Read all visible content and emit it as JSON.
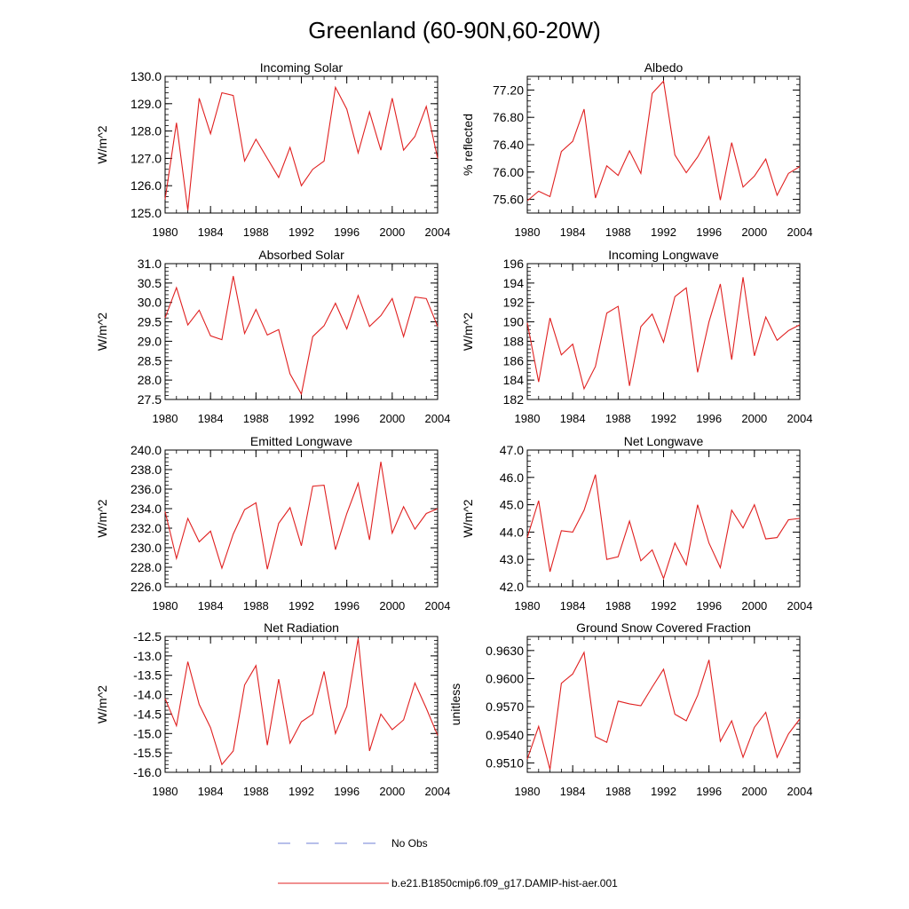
{
  "title": "Greenland (60-90N,60-20W)",
  "legend": {
    "items": [
      {
        "label": "No Obs",
        "color": "#6f7fd6",
        "dash": true
      },
      {
        "label": "b.e21.B1850cmip6.f09_g17.DAMIP-hist-aer.001",
        "color": "#e02020",
        "dash": false
      }
    ]
  },
  "chart_data": [
    {
      "type": "line",
      "title": "Incoming Solar",
      "ylabel": "W/m^2",
      "xlim": [
        1980,
        2004
      ],
      "ylim": [
        125.0,
        130.0
      ],
      "x_ticks": [
        "1980",
        "1984",
        "1988",
        "1992",
        "1996",
        "2000",
        "2004"
      ],
      "y_ticks": [
        "125.0",
        "126.0",
        "127.0",
        "128.0",
        "129.0",
        "130.0"
      ],
      "series": [
        {
          "color": "#e02020",
          "x": [
            1980,
            1981,
            1982,
            1983,
            1984,
            1985,
            1986,
            1987,
            1988,
            1989,
            1990,
            1991,
            1992,
            1993,
            1994,
            1995,
            1996,
            1997,
            1998,
            1999,
            2000,
            2001,
            2002,
            2003,
            2004
          ],
          "values": [
            125.5,
            128.3,
            125.1,
            129.2,
            127.9,
            129.4,
            129.3,
            126.9,
            127.7,
            127.0,
            126.3,
            127.4,
            126.0,
            126.6,
            126.9,
            129.6,
            128.8,
            127.2,
            128.7,
            127.3,
            129.2,
            127.3,
            127.8,
            128.9,
            127.0
          ]
        }
      ]
    },
    {
      "type": "line",
      "title": "Albedo",
      "ylabel": "% reflected",
      "xlim": [
        1980,
        2004
      ],
      "ylim": [
        75.4,
        77.4
      ],
      "x_ticks": [
        "1980",
        "1984",
        "1988",
        "1992",
        "1996",
        "2000",
        "2004"
      ],
      "y_ticks": [
        "75.60",
        "76.00",
        "76.40",
        "76.80",
        "77.20"
      ],
      "series": [
        {
          "color": "#e02020",
          "x": [
            1980,
            1981,
            1982,
            1983,
            1984,
            1985,
            1986,
            1987,
            1988,
            1989,
            1990,
            1991,
            1992,
            1993,
            1994,
            1995,
            1996,
            1997,
            1998,
            1999,
            2000,
            2001,
            2002,
            2003,
            2004
          ],
          "values": [
            75.58,
            75.72,
            75.64,
            76.3,
            76.45,
            76.92,
            75.62,
            76.09,
            75.95,
            76.31,
            75.98,
            77.15,
            77.33,
            76.25,
            75.99,
            76.22,
            76.52,
            75.59,
            76.43,
            75.78,
            75.94,
            76.19,
            75.66,
            75.98,
            76.08
          ]
        }
      ]
    },
    {
      "type": "line",
      "title": "Absorbed Solar",
      "ylabel": "W/m^2",
      "xlim": [
        1980,
        2004
      ],
      "ylim": [
        27.5,
        31.0
      ],
      "x_ticks": [
        "1980",
        "1984",
        "1988",
        "1992",
        "1996",
        "2000",
        "2004"
      ],
      "y_ticks": [
        "27.5",
        "28.0",
        "28.5",
        "29.0",
        "29.5",
        "30.0",
        "30.5",
        "31.0"
      ],
      "series": [
        {
          "color": "#e02020",
          "x": [
            1980,
            1981,
            1982,
            1983,
            1984,
            1985,
            1986,
            1987,
            1988,
            1989,
            1990,
            1991,
            1992,
            1993,
            1994,
            1995,
            1996,
            1997,
            1998,
            1999,
            2000,
            2001,
            2002,
            2003,
            2004
          ],
          "values": [
            29.6,
            30.38,
            29.42,
            29.8,
            29.14,
            29.04,
            30.68,
            29.2,
            29.82,
            29.16,
            29.3,
            28.16,
            27.64,
            29.12,
            29.4,
            29.98,
            29.32,
            30.18,
            29.38,
            29.66,
            30.1,
            29.12,
            30.14,
            30.1,
            29.38
          ]
        }
      ]
    },
    {
      "type": "line",
      "title": "Incoming Longwave",
      "ylabel": "W/m^2",
      "xlim": [
        1980,
        2004
      ],
      "ylim": [
        182,
        196
      ],
      "x_ticks": [
        "1980",
        "1984",
        "1988",
        "1992",
        "1996",
        "2000",
        "2004"
      ],
      "y_ticks": [
        "182",
        "184",
        "186",
        "188",
        "190",
        "192",
        "194",
        "196"
      ],
      "series": [
        {
          "color": "#e02020",
          "x": [
            1980,
            1981,
            1982,
            1983,
            1984,
            1985,
            1986,
            1987,
            1988,
            1989,
            1990,
            1991,
            1992,
            1993,
            1994,
            1995,
            1996,
            1997,
            1998,
            1999,
            2000,
            2001,
            2002,
            2003,
            2004
          ],
          "values": [
            189.9,
            183.8,
            190.4,
            186.6,
            187.7,
            183.1,
            185.4,
            190.9,
            191.6,
            183.4,
            189.5,
            190.8,
            187.9,
            192.6,
            193.5,
            184.8,
            190.0,
            193.9,
            186.1,
            194.6,
            186.5,
            190.5,
            188.1,
            189.1,
            189.7
          ]
        }
      ]
    },
    {
      "type": "line",
      "title": "Emitted Longwave",
      "ylabel": "W/m^2",
      "xlim": [
        1980,
        2004
      ],
      "ylim": [
        226.0,
        240.0
      ],
      "x_ticks": [
        "1980",
        "1984",
        "1988",
        "1992",
        "1996",
        "2000",
        "2004"
      ],
      "y_ticks": [
        "226.0",
        "228.0",
        "230.0",
        "232.0",
        "234.0",
        "236.0",
        "238.0",
        "240.0"
      ],
      "series": [
        {
          "color": "#e02020",
          "x": [
            1980,
            1981,
            1982,
            1983,
            1984,
            1985,
            1986,
            1987,
            1988,
            1989,
            1990,
            1991,
            1992,
            1993,
            1994,
            1995,
            1996,
            1997,
            1998,
            1999,
            2000,
            2001,
            2002,
            2003,
            2004
          ],
          "values": [
            233.7,
            228.9,
            233.0,
            230.6,
            231.7,
            227.9,
            231.4,
            233.9,
            234.6,
            227.8,
            232.5,
            234.1,
            230.2,
            236.3,
            236.4,
            229.8,
            233.5,
            236.6,
            230.8,
            238.8,
            231.5,
            234.2,
            231.9,
            233.5,
            234.0
          ]
        }
      ]
    },
    {
      "type": "line",
      "title": "Net Longwave",
      "ylabel": "W/m^2",
      "xlim": [
        1980,
        2004
      ],
      "ylim": [
        42.0,
        47.0
      ],
      "x_ticks": [
        "1980",
        "1984",
        "1988",
        "1992",
        "1996",
        "2000",
        "2004"
      ],
      "y_ticks": [
        "42.0",
        "43.0",
        "44.0",
        "45.0",
        "46.0",
        "47.0"
      ],
      "series": [
        {
          "color": "#e02020",
          "x": [
            1980,
            1981,
            1982,
            1983,
            1984,
            1985,
            1986,
            1987,
            1988,
            1989,
            1990,
            1991,
            1992,
            1993,
            1994,
            1995,
            1996,
            1997,
            1998,
            1999,
            2000,
            2001,
            2002,
            2003,
            2004
          ],
          "values": [
            43.8,
            45.15,
            42.55,
            44.05,
            44.0,
            44.8,
            46.1,
            43.0,
            43.1,
            44.4,
            42.95,
            43.35,
            42.3,
            43.6,
            42.8,
            45.0,
            43.6,
            42.7,
            44.8,
            44.15,
            45.0,
            43.75,
            43.8,
            44.45,
            44.5
          ]
        }
      ]
    },
    {
      "type": "line",
      "title": "Net Radiation",
      "ylabel": "W/m^2",
      "xlim": [
        1980,
        2004
      ],
      "ylim": [
        -16.0,
        -12.5
      ],
      "x_ticks": [
        "1980",
        "1984",
        "1988",
        "1992",
        "1996",
        "2000",
        "2004"
      ],
      "y_ticks": [
        "-16.0",
        "-15.5",
        "-15.0",
        "-14.5",
        "-14.0",
        "-13.5",
        "-13.0",
        "-12.5"
      ],
      "series": [
        {
          "color": "#e02020",
          "x": [
            1980,
            1981,
            1982,
            1983,
            1984,
            1985,
            1986,
            1987,
            1988,
            1989,
            1990,
            1991,
            1992,
            1993,
            1994,
            1995,
            1996,
            1997,
            1998,
            1999,
            2000,
            2001,
            2002,
            2003,
            2004
          ],
          "values": [
            -14.1,
            -14.8,
            -13.15,
            -14.25,
            -14.85,
            -15.8,
            -15.45,
            -13.75,
            -13.25,
            -15.3,
            -13.6,
            -15.25,
            -14.7,
            -14.5,
            -13.4,
            -15.0,
            -14.3,
            -12.55,
            -15.45,
            -14.5,
            -14.9,
            -14.65,
            -13.7,
            -14.35,
            -15.05
          ]
        }
      ]
    },
    {
      "type": "line",
      "title": "Ground Snow Covered Fraction",
      "ylabel": "unitless",
      "xlim": [
        1980,
        2004
      ],
      "ylim": [
        0.95,
        0.9645
      ],
      "x_ticks": [
        "1980",
        "1984",
        "1988",
        "1992",
        "1996",
        "2000",
        "2004"
      ],
      "y_ticks": [
        "0.9510",
        "0.9540",
        "0.9570",
        "0.9600",
        "0.9630"
      ],
      "series": [
        {
          "color": "#e02020",
          "x": [
            1980,
            1981,
            1982,
            1983,
            1984,
            1985,
            1986,
            1987,
            1988,
            1989,
            1990,
            1991,
            1992,
            1993,
            1994,
            1995,
            1996,
            1997,
            1998,
            1999,
            2000,
            2001,
            2002,
            2003,
            2004
          ],
          "values": [
            0.9514,
            0.9549,
            0.9503,
            0.9595,
            0.9605,
            0.9628,
            0.9538,
            0.9532,
            0.9576,
            0.9573,
            0.9571,
            0.9591,
            0.961,
            0.9562,
            0.9555,
            0.9582,
            0.962,
            0.9533,
            0.9555,
            0.9516,
            0.9548,
            0.9564,
            0.9516,
            0.9541,
            0.9557
          ]
        }
      ]
    }
  ]
}
